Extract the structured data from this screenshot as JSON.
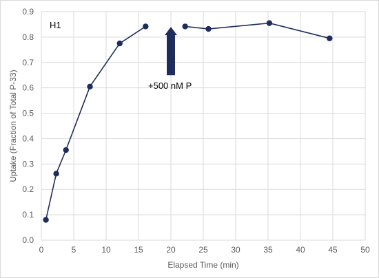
{
  "chart_data": {
    "type": "line",
    "panel_label": "H1",
    "xlabel": "Elapsed Time (min)",
    "ylabel": "Uptake (Fraction of Total P-33)",
    "xlim": [
      0,
      50
    ],
    "ylim": [
      0,
      0.9
    ],
    "x_ticks": [
      0,
      5,
      10,
      15,
      20,
      25,
      30,
      35,
      40,
      45,
      50
    ],
    "y_ticks": [
      "0.0",
      "0.1",
      "0.2",
      "0.3",
      "0.4",
      "0.5",
      "0.6",
      "0.7",
      "0.8",
      "0.9"
    ],
    "grid": true,
    "series": [
      {
        "segment": "before",
        "x": [
          0.7,
          2.3,
          3.8,
          7.5,
          12.1,
          16.1
        ],
        "y": [
          0.08,
          0.262,
          0.355,
          0.605,
          0.775,
          0.842
        ]
      },
      {
        "segment": "after",
        "x": [
          22.2,
          25.8,
          35.2,
          44.5
        ],
        "y": [
          0.842,
          0.832,
          0.855,
          0.795
        ]
      }
    ],
    "annotation": {
      "text": "+500 nM P",
      "x": 20,
      "y_tip": 0.84,
      "y_base": 0.65
    },
    "colors": {
      "series": "#1f2d5c",
      "grid": "#d9d9d9",
      "axis_text": "#595959"
    }
  }
}
